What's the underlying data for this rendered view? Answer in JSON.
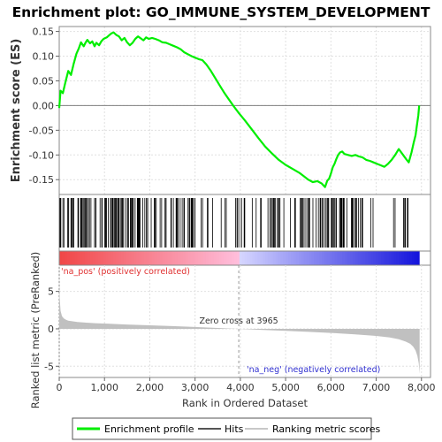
{
  "chart_data": {
    "type": "line",
    "title": "Enrichment plot: GO_IMMUNE_SYSTEM_DEVELOPMENT",
    "top_panel": {
      "ylabel": "Enrichment score (ES)",
      "ylim": [
        -0.18,
        0.16
      ],
      "yticks": [
        0.15,
        0.1,
        0.05,
        0.0,
        -0.05,
        -0.1,
        -0.15
      ],
      "ytick_labels": [
        "0.15",
        "0.10",
        "0.05",
        "0.00",
        "-0.05",
        "-0.10",
        "-0.15"
      ],
      "grid": true,
      "series": [
        {
          "name": "Enrichment profile",
          "color": "#00ee00",
          "x": [
            0,
            30,
            80,
            130,
            200,
            260,
            320,
            380,
            430,
            480,
            540,
            580,
            620,
            680,
            730,
            780,
            820,
            880,
            930,
            980,
            1050,
            1100,
            1150,
            1200,
            1260,
            1320,
            1380,
            1440,
            1500,
            1560,
            1620,
            1680,
            1740,
            1800,
            1860,
            1920,
            1980,
            2050,
            2120,
            2200,
            2280,
            2360,
            2440,
            2520,
            2600,
            2680,
            2760,
            2840,
            2920,
            3000,
            3080,
            3160,
            3250,
            3350,
            3450,
            3550,
            3650,
            3750,
            3850,
            3965,
            4100,
            4250,
            4400,
            4550,
            4700,
            4850,
            5000,
            5150,
            5300,
            5400,
            5500,
            5600,
            5700,
            5800,
            5870,
            5920,
            5960,
            6000,
            6040,
            6080,
            6120,
            6160,
            6200,
            6250,
            6300,
            6380,
            6460,
            6540,
            6620,
            6700,
            6780,
            6860,
            6940,
            7020,
            7100,
            7180,
            7260,
            7340,
            7420,
            7500,
            7580,
            7660,
            7720,
            7780,
            7830,
            7870,
            7900,
            7930,
            7950
          ],
          "y": [
            -0.005,
            0.03,
            0.025,
            0.045,
            0.07,
            0.062,
            0.085,
            0.105,
            0.115,
            0.128,
            0.12,
            0.127,
            0.133,
            0.126,
            0.13,
            0.12,
            0.127,
            0.122,
            0.13,
            0.135,
            0.138,
            0.142,
            0.146,
            0.148,
            0.143,
            0.14,
            0.132,
            0.137,
            0.128,
            0.122,
            0.127,
            0.135,
            0.14,
            0.136,
            0.132,
            0.138,
            0.135,
            0.137,
            0.135,
            0.132,
            0.128,
            0.127,
            0.124,
            0.121,
            0.118,
            0.114,
            0.108,
            0.104,
            0.1,
            0.097,
            0.094,
            0.092,
            0.083,
            0.07,
            0.055,
            0.04,
            0.025,
            0.012,
            -0.001,
            -0.015,
            -0.03,
            -0.048,
            -0.066,
            -0.083,
            -0.097,
            -0.11,
            -0.12,
            -0.128,
            -0.136,
            -0.143,
            -0.15,
            -0.155,
            -0.153,
            -0.158,
            -0.165,
            -0.152,
            -0.148,
            -0.138,
            -0.125,
            -0.118,
            -0.108,
            -0.1,
            -0.095,
            -0.093,
            -0.098,
            -0.1,
            -0.102,
            -0.1,
            -0.103,
            -0.105,
            -0.11,
            -0.112,
            -0.115,
            -0.118,
            -0.121,
            -0.124,
            -0.118,
            -0.11,
            -0.1,
            -0.088,
            -0.098,
            -0.108,
            -0.115,
            -0.095,
            -0.075,
            -0.06,
            -0.04,
            -0.02,
            0.0
          ]
        }
      ]
    },
    "hits_panel": {
      "legend_name": "Hits",
      "color": "#000000"
    },
    "rank_bar": {
      "pos_label": "'na_pos' (positively correlated)",
      "neg_label": "'na_neg' (negatively correlated)",
      "pos_color": "#ff4040",
      "mid_pos_color": "#ffb0d8",
      "mid_neg_color": "#c8c8ff",
      "neg_color": "#2020ee"
    },
    "bottom_panel": {
      "ylabel": "Ranked list metric (PreRanked)",
      "ylim": [
        -6.5,
        8.5
      ],
      "yticks": [
        5,
        0,
        -5
      ],
      "ytick_labels": [
        "5",
        "0",
        "-5"
      ],
      "zero_cross_label": "Zero cross at 3965",
      "zero_cross": 3965,
      "legend_name": "Ranking metric scores",
      "fill_color": "#c0c0c0",
      "metric_x": [
        0,
        10,
        30,
        60,
        100,
        150,
        200,
        300,
        400,
        600,
        800,
        1000,
        1500,
        2000,
        2500,
        3000,
        3500,
        3965,
        4500,
        5000,
        5500,
        6000,
        6500,
        7000,
        7300,
        7500,
        7650,
        7750,
        7820,
        7870,
        7910,
        7940,
        7960
      ],
      "metric_y": [
        6.0,
        4.2,
        2.4,
        1.7,
        1.4,
        1.2,
        1.1,
        1.0,
        0.92,
        0.82,
        0.75,
        0.7,
        0.58,
        0.47,
        0.36,
        0.24,
        0.12,
        0.0,
        -0.14,
        -0.27,
        -0.4,
        -0.55,
        -0.72,
        -0.95,
        -1.15,
        -1.4,
        -1.7,
        -2.0,
        -2.4,
        -2.9,
        -3.6,
        -4.6,
        -6.0
      ]
    },
    "xaxis": {
      "xlabel": "Rank in Ordered Dataset",
      "xlim": [
        0,
        8200
      ],
      "xticks": [
        0,
        1000,
        2000,
        3000,
        4000,
        5000,
        6000,
        7000,
        8000
      ],
      "xtick_labels": [
        "0",
        "1,000",
        "2,000",
        "3,000",
        "4,000",
        "5,000",
        "6,000",
        "7,000",
        "8,000"
      ]
    },
    "legend": {
      "placement": "bottom",
      "entries": [
        "Enrichment profile",
        "Hits",
        "Ranking metric scores"
      ]
    }
  }
}
